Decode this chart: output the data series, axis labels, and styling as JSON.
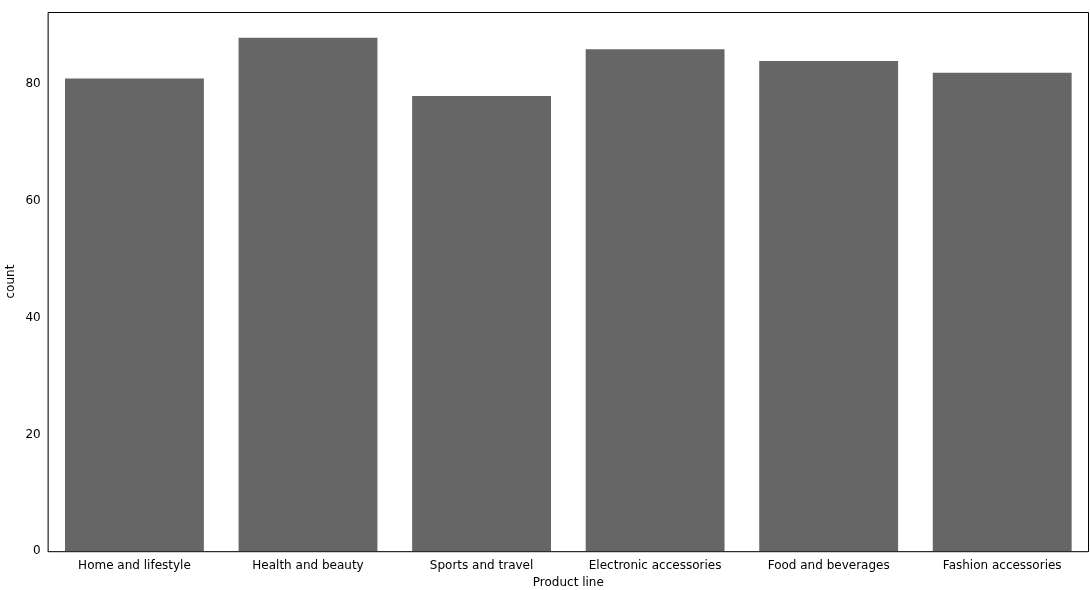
{
  "chart_data": {
    "type": "bar",
    "xlabel": "Product line",
    "ylabel": "count",
    "categories": [
      "Home and lifestyle",
      "Health and beauty",
      "Sports and travel",
      "Electronic accessories",
      "Food and beverages",
      "Fashion accessories"
    ],
    "values": [
      81,
      88,
      78,
      86,
      84,
      82
    ],
    "color": "#666666",
    "ylim": [
      0,
      92.4
    ],
    "yticks": [
      0,
      20,
      40,
      60,
      80
    ],
    "grid": false,
    "legend": false
  }
}
